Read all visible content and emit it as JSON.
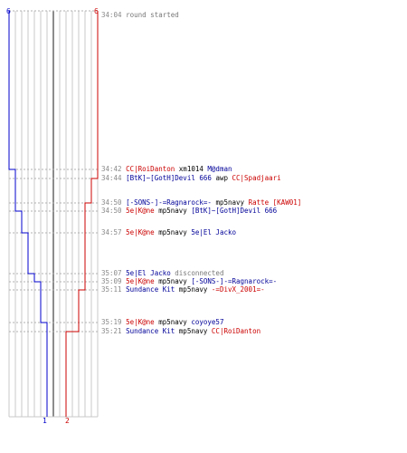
{
  "header": {
    "left_count": "6",
    "right_count": "6",
    "round_time": "34:04",
    "round_text": "round started"
  },
  "footer": {
    "left_final": "1",
    "right_final": "2"
  },
  "colors": {
    "blue_team": "#0000cc",
    "red_team": "#cc0000",
    "time": "#888888",
    "grid": "#c8c8c8",
    "center_line": "#666666"
  },
  "events": [
    {
      "time": "34:42",
      "killer": "CC|RoiDanton",
      "killer_team": "red",
      "weapon": "xm1014",
      "victim": "M@dman",
      "victim_team": "blue"
    },
    {
      "time": "34:44",
      "killer": "[BtK]~[GotH]Devil 666",
      "killer_team": "blue",
      "weapon": "awp",
      "victim": "CC|Spadjaari",
      "victim_team": "red"
    },
    {
      "time": "34:50",
      "killer": "[-SONS-]-=Ragnarock=-",
      "killer_team": "blue",
      "weapon": "mp5navy",
      "victim": "Ratte [KAW01]",
      "victim_team": "red"
    },
    {
      "time": "34:50",
      "killer": "5e|K@ne",
      "killer_team": "red",
      "weapon": "mp5navy",
      "victim": "[BtK]~[GotH]Devil 666",
      "victim_team": "blue"
    },
    {
      "time": "34:57",
      "killer": "5e|K@ne",
      "killer_team": "red",
      "weapon": "mp5navy",
      "victim": "5e|El Jacko",
      "victim_team": "blue"
    },
    {
      "time": "35:07",
      "killer": "5e|El Jacko",
      "killer_team": "blue",
      "weapon": "disconnected",
      "victim": "",
      "victim_team": "grey"
    },
    {
      "time": "35:09",
      "killer": "5e|K@ne",
      "killer_team": "red",
      "weapon": "mp5navy",
      "victim": "[-SONS-]-=Ragnarock=-",
      "victim_team": "blue"
    },
    {
      "time": "35:11",
      "killer": "Sundance Kit",
      "killer_team": "blue",
      "weapon": "mp5navy",
      "victim": "-=DivX_2001=-",
      "victim_team": "red"
    },
    {
      "time": "35:19",
      "killer": "5e|K@ne",
      "killer_team": "red",
      "weapon": "mp5navy",
      "victim": "coyoye57",
      "victim_team": "blue"
    },
    {
      "time": "35:21",
      "killer": "Sundance Kit",
      "killer_team": "blue",
      "weapon": "mp5navy",
      "victim": "CC|RoiDanton",
      "victim_team": "red"
    }
  ]
}
